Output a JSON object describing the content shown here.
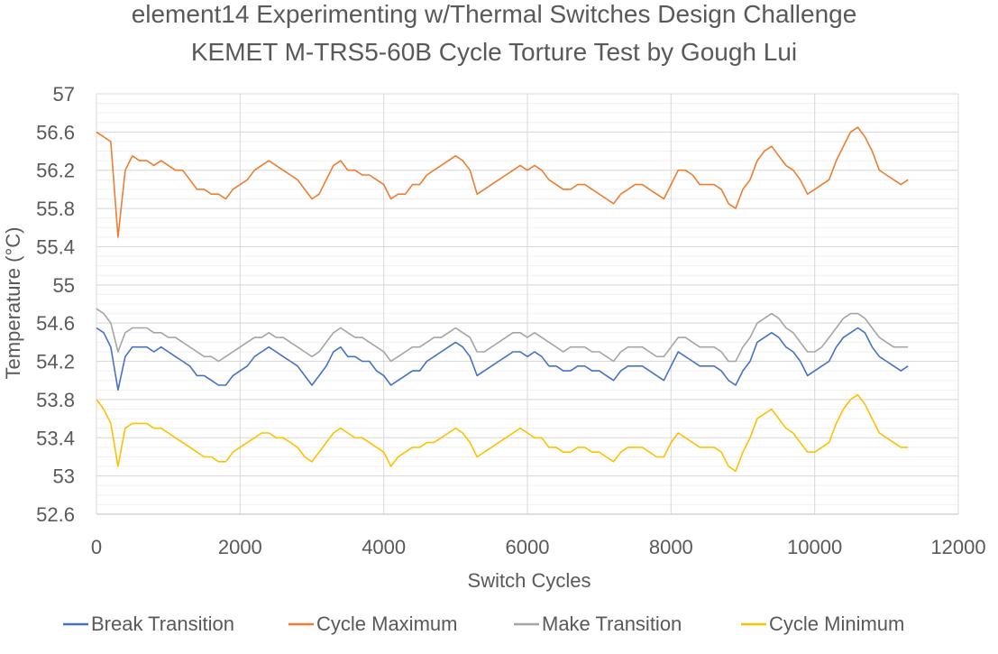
{
  "chart_data": {
    "type": "line",
    "title": "element14 Experimenting w/Thermal Switches Design Challenge",
    "subtitle": "KEMET M-TRS5-60B Cycle Torture Test by Gough Lui",
    "xlabel": "Switch Cycles",
    "ylabel": "Temperature (°C)",
    "xlim": [
      0,
      12000
    ],
    "ylim": [
      52.6,
      57
    ],
    "x_ticks": [
      "0",
      "2000",
      "4000",
      "6000",
      "8000",
      "10000",
      "12000"
    ],
    "y_ticks": [
      "52.6",
      "53",
      "53.4",
      "53.8",
      "54.2",
      "54.6",
      "55",
      "55.4",
      "55.8",
      "56.2",
      "56.6",
      "57"
    ],
    "grid": true,
    "legend_position": "bottom",
    "x": [
      0,
      100,
      200,
      300,
      400,
      500,
      600,
      700,
      800,
      900,
      1000,
      1100,
      1200,
      1300,
      1400,
      1500,
      1600,
      1700,
      1800,
      1900,
      2000,
      2100,
      2200,
      2300,
      2400,
      2500,
      2600,
      2700,
      2800,
      2900,
      3000,
      3100,
      3200,
      3300,
      3400,
      3500,
      3600,
      3700,
      3800,
      3900,
      4000,
      4100,
      4200,
      4300,
      4400,
      4500,
      4600,
      4700,
      4800,
      4900,
      5000,
      5100,
      5200,
      5300,
      5400,
      5500,
      5600,
      5700,
      5800,
      5900,
      6000,
      6100,
      6200,
      6300,
      6400,
      6500,
      6600,
      6700,
      6800,
      6900,
      7000,
      7100,
      7200,
      7300,
      7400,
      7500,
      7600,
      7700,
      7800,
      7900,
      8000,
      8100,
      8200,
      8300,
      8400,
      8500,
      8600,
      8700,
      8800,
      8900,
      9000,
      9100,
      9200,
      9300,
      9400,
      9500,
      9600,
      9700,
      9800,
      9900,
      10000,
      10100,
      10200,
      10300,
      10400,
      10500,
      10600,
      10700,
      10800,
      10900,
      11000,
      11100,
      11200,
      11300
    ],
    "series": [
      {
        "name": "Break Transition",
        "color": "#4472C4",
        "values": [
          54.55,
          54.5,
          54.35,
          53.9,
          54.25,
          54.35,
          54.35,
          54.35,
          54.3,
          54.35,
          54.3,
          54.25,
          54.2,
          54.15,
          54.05,
          54.05,
          54.0,
          53.95,
          53.95,
          54.05,
          54.1,
          54.15,
          54.25,
          54.3,
          54.35,
          54.3,
          54.25,
          54.2,
          54.15,
          54.05,
          53.95,
          54.05,
          54.15,
          54.3,
          54.35,
          54.25,
          54.25,
          54.2,
          54.2,
          54.1,
          54.05,
          53.95,
          54.0,
          54.05,
          54.1,
          54.1,
          54.2,
          54.25,
          54.3,
          54.35,
          54.4,
          54.35,
          54.25,
          54.05,
          54.1,
          54.15,
          54.2,
          54.25,
          54.3,
          54.3,
          54.25,
          54.3,
          54.25,
          54.15,
          54.15,
          54.1,
          54.1,
          54.15,
          54.15,
          54.1,
          54.1,
          54.05,
          54.0,
          54.1,
          54.15,
          54.15,
          54.15,
          54.1,
          54.05,
          54.0,
          54.15,
          54.3,
          54.25,
          54.2,
          54.15,
          54.15,
          54.15,
          54.1,
          54.0,
          53.95,
          54.1,
          54.2,
          54.4,
          54.45,
          54.5,
          54.45,
          54.35,
          54.3,
          54.2,
          54.05,
          54.1,
          54.15,
          54.2,
          54.35,
          54.45,
          54.5,
          54.55,
          54.5,
          54.35,
          54.25,
          54.2,
          54.15,
          54.1,
          54.15
        ]
      },
      {
        "name": "Cycle Maximum",
        "color": "#ED7D31",
        "values": [
          56.6,
          56.55,
          56.5,
          55.5,
          56.2,
          56.35,
          56.3,
          56.3,
          56.25,
          56.3,
          56.25,
          56.2,
          56.2,
          56.1,
          56.0,
          56.0,
          55.95,
          55.95,
          55.9,
          56.0,
          56.05,
          56.1,
          56.2,
          56.25,
          56.3,
          56.25,
          56.2,
          56.15,
          56.1,
          56.0,
          55.9,
          55.95,
          56.1,
          56.25,
          56.3,
          56.2,
          56.2,
          56.15,
          56.15,
          56.1,
          56.05,
          55.9,
          55.95,
          55.95,
          56.05,
          56.05,
          56.15,
          56.2,
          56.25,
          56.3,
          56.35,
          56.3,
          56.2,
          55.95,
          56.0,
          56.05,
          56.1,
          56.15,
          56.2,
          56.25,
          56.2,
          56.25,
          56.2,
          56.1,
          56.05,
          56.0,
          56.0,
          56.05,
          56.05,
          56.0,
          55.95,
          55.9,
          55.85,
          55.95,
          56.0,
          56.05,
          56.05,
          56.0,
          55.95,
          55.9,
          56.05,
          56.2,
          56.2,
          56.15,
          56.05,
          56.05,
          56.05,
          56.0,
          55.85,
          55.8,
          56.0,
          56.1,
          56.3,
          56.4,
          56.45,
          56.35,
          56.25,
          56.2,
          56.1,
          55.95,
          56.0,
          56.05,
          56.1,
          56.3,
          56.45,
          56.6,
          56.65,
          56.55,
          56.4,
          56.2,
          56.15,
          56.1,
          56.05,
          56.1
        ]
      },
      {
        "name": "Make Transition",
        "color": "#A5A5A5",
        "values": [
          54.75,
          54.7,
          54.6,
          54.3,
          54.5,
          54.55,
          54.55,
          54.55,
          54.5,
          54.5,
          54.45,
          54.45,
          54.4,
          54.35,
          54.3,
          54.25,
          54.25,
          54.2,
          54.25,
          54.3,
          54.35,
          54.4,
          54.45,
          54.45,
          54.5,
          54.45,
          54.45,
          54.4,
          54.35,
          54.3,
          54.25,
          54.3,
          54.4,
          54.5,
          54.55,
          54.5,
          54.45,
          54.45,
          54.4,
          54.35,
          54.3,
          54.2,
          54.25,
          54.3,
          54.35,
          54.35,
          54.4,
          54.45,
          54.45,
          54.5,
          54.55,
          54.5,
          54.45,
          54.3,
          54.3,
          54.35,
          54.4,
          54.45,
          54.5,
          54.5,
          54.45,
          54.5,
          54.45,
          54.4,
          54.35,
          54.3,
          54.35,
          54.35,
          54.35,
          54.3,
          54.3,
          54.25,
          54.2,
          54.3,
          54.35,
          54.35,
          54.35,
          54.3,
          54.25,
          54.25,
          54.35,
          54.45,
          54.45,
          54.4,
          54.35,
          54.35,
          54.35,
          54.3,
          54.2,
          54.2,
          54.35,
          54.45,
          54.6,
          54.65,
          54.7,
          54.65,
          54.55,
          54.5,
          54.4,
          54.3,
          54.3,
          54.35,
          54.45,
          54.55,
          54.65,
          54.7,
          54.7,
          54.65,
          54.55,
          54.45,
          54.4,
          54.35,
          54.35,
          54.35
        ]
      },
      {
        "name": "Cycle Minimum",
        "color": "#FFC000",
        "values": [
          53.8,
          53.7,
          53.55,
          53.1,
          53.5,
          53.55,
          53.55,
          53.55,
          53.5,
          53.5,
          53.45,
          53.4,
          53.35,
          53.3,
          53.25,
          53.2,
          53.2,
          53.15,
          53.15,
          53.25,
          53.3,
          53.35,
          53.4,
          53.45,
          53.45,
          53.4,
          53.4,
          53.35,
          53.3,
          53.2,
          53.15,
          53.25,
          53.35,
          53.45,
          53.5,
          53.45,
          53.4,
          53.4,
          53.35,
          53.3,
          53.25,
          53.1,
          53.2,
          53.25,
          53.3,
          53.3,
          53.35,
          53.35,
          53.4,
          53.45,
          53.5,
          53.45,
          53.35,
          53.2,
          53.25,
          53.3,
          53.35,
          53.4,
          53.45,
          53.5,
          53.45,
          53.4,
          53.4,
          53.3,
          53.3,
          53.25,
          53.25,
          53.3,
          53.3,
          53.25,
          53.25,
          53.2,
          53.15,
          53.25,
          53.3,
          53.3,
          53.3,
          53.25,
          53.2,
          53.2,
          53.35,
          53.45,
          53.4,
          53.35,
          53.3,
          53.3,
          53.3,
          53.25,
          53.1,
          53.05,
          53.25,
          53.4,
          53.6,
          53.65,
          53.7,
          53.6,
          53.5,
          53.45,
          53.35,
          53.25,
          53.25,
          53.3,
          53.35,
          53.55,
          53.7,
          53.8,
          53.85,
          53.75,
          53.6,
          53.45,
          53.4,
          53.35,
          53.3,
          53.3
        ]
      }
    ]
  }
}
